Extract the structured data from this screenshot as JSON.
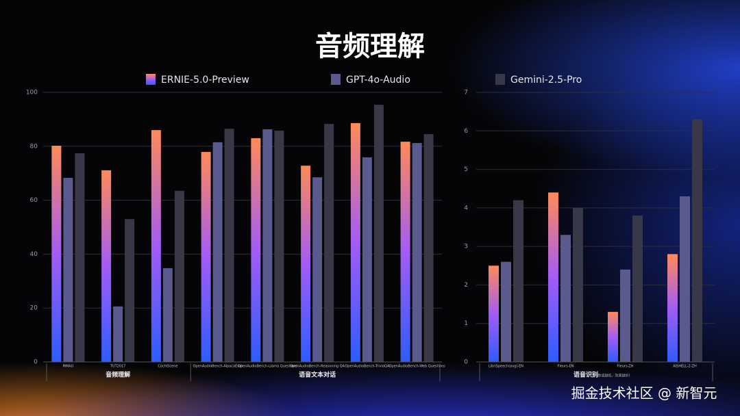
{
  "title": "音频理解",
  "watermark": "掘金技术社区 @ 新智元",
  "chart_data": [
    {
      "type": "bar",
      "categories": [
        "MMAU",
        "TUT2017",
        "CochlScene",
        "OpenAudioBench-AlpacaEval",
        "OpenAudioBench-Llama Questions",
        "OpenAudioBench-Reasoning QA",
        "OpenAudioBench-TriviaQA",
        "OpenAudioBench-Web Questions"
      ],
      "groups": [
        {
          "label": "音频理解",
          "span": 3
        },
        {
          "label": "语音文本对话",
          "span": 5
        }
      ],
      "series": [
        {
          "name": "ERNIE-5.0-Preview",
          "color": [
            "#ff8a58",
            "#a35cf5",
            "#2d5cff"
          ],
          "values": [
            80.2,
            71.1,
            86.0,
            77.9,
            83.0,
            72.8,
            88.6,
            81.7
          ]
        },
        {
          "name": "GPT-4o-Audio",
          "color": "#5a5a8e",
          "values": [
            68.3,
            20.6,
            34.8,
            81.5,
            86.3,
            68.5,
            75.9,
            81.2
          ]
        },
        {
          "name": "Gemini-2.5-Pro",
          "color": "#383849",
          "values": [
            77.4,
            53.0,
            63.5,
            86.5,
            85.8,
            88.3,
            95.4,
            84.5
          ]
        }
      ],
      "ylim": [
        0,
        100
      ],
      "yticks": [
        0,
        20,
        40,
        60,
        80,
        100
      ],
      "grid": true
    },
    {
      "type": "bar",
      "categories": [
        "LibriSpeech(avg)-EN",
        "Fleurs-EN",
        "Fleurs-ZH",
        "AISHELL-2-ZH"
      ],
      "groups": [
        {
          "label": "语音识别",
          "note": "(数值越低，效果越好)",
          "span": 4
        }
      ],
      "series": [
        {
          "color": [
            "#ff8a58",
            "#a35cf5",
            "#2d5cff"
          ],
          "values": [
            2.5,
            4.4,
            1.3,
            2.8
          ]
        },
        {
          "color": "#5a5a8e",
          "values": [
            2.6,
            3.3,
            2.4,
            4.3
          ]
        },
        {
          "color": "#383849",
          "values": [
            4.2,
            4.0,
            3.8,
            6.3
          ]
        }
      ],
      "ylim": [
        0,
        7
      ],
      "yticks": [
        0,
        1,
        2,
        3,
        4,
        5,
        6,
        7
      ],
      "grid": true
    }
  ]
}
